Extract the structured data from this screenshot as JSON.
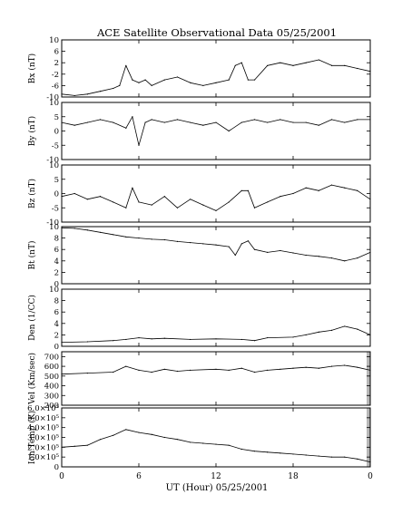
{
  "figure": {
    "title": "ACE Satellite Observational Data   05/25/2001",
    "xlabel": "UT (Hour)   05/25/2001"
  },
  "colors": {
    "trace": "#000000",
    "data_gap": "#b8b8b8",
    "background": "#ffffff"
  },
  "chart_data": [
    {
      "type": "line",
      "ylabel": "Bx (nT)",
      "ylim": [
        -10,
        10
      ],
      "yticks": [
        "10",
        "6",
        "2",
        "-2",
        "-6",
        "-10"
      ],
      "ytick_values": [
        10,
        6,
        2,
        -2,
        -6,
        -10
      ],
      "xlim": [
        0,
        24
      ],
      "xticks": [
        "0",
        "6",
        "12",
        "18",
        "0"
      ],
      "x": [
        0,
        1,
        2,
        3,
        4,
        4.5,
        5,
        5.5,
        6,
        6.5,
        7,
        8,
        9,
        10,
        11,
        12,
        13,
        13.5,
        14,
        14.5,
        15,
        16,
        17,
        18,
        19,
        20,
        21,
        22,
        23,
        24
      ],
      "values": [
        -9,
        -9.5,
        -9,
        -8,
        -7,
        -6,
        1,
        -4,
        -5,
        -4,
        -6,
        -4,
        -3,
        -5,
        -6,
        -5,
        -4,
        1,
        2,
        -4,
        -4,
        1,
        2,
        1,
        2,
        3,
        1,
        1,
        0,
        -1
      ]
    },
    {
      "type": "line",
      "ylabel": "By (nT)",
      "ylim": [
        -10,
        10
      ],
      "yticks": [
        "10",
        "5",
        "0",
        "-5",
        "-10"
      ],
      "ytick_values": [
        10,
        5,
        0,
        -5,
        -10
      ],
      "xlim": [
        0,
        24
      ],
      "x": [
        0,
        1,
        2,
        3,
        4,
        5,
        5.5,
        6,
        6.5,
        7,
        8,
        9,
        10,
        11,
        12,
        13,
        14,
        15,
        16,
        17,
        18,
        19,
        20,
        21,
        22,
        23,
        24
      ],
      "values": [
        3,
        2,
        3,
        4,
        3,
        1,
        5,
        -5,
        3,
        4,
        3,
        4,
        3,
        2,
        3,
        0,
        3,
        4,
        3,
        4,
        3,
        3,
        2,
        4,
        3,
        4,
        4
      ]
    },
    {
      "type": "line",
      "ylabel": "Bz (nT)",
      "ylim": [
        -10,
        10
      ],
      "yticks": [
        "10",
        "5",
        "0",
        "-5",
        "-10"
      ],
      "ytick_values": [
        10,
        5,
        0,
        -5,
        -10
      ],
      "xlim": [
        0,
        24
      ],
      "x": [
        0,
        1,
        2,
        3,
        4,
        5,
        5.5,
        6,
        7,
        8,
        9,
        10,
        11,
        12,
        13,
        14,
        14.5,
        15,
        16,
        17,
        18,
        19,
        20,
        21,
        22,
        23,
        24
      ],
      "values": [
        -1,
        0,
        -2,
        -1,
        -3,
        -5,
        2,
        -3,
        -4,
        -1,
        -5,
        -2,
        -4,
        -6,
        -3,
        1,
        1,
        -5,
        -3,
        -1,
        0,
        2,
        1,
        3,
        2,
        1,
        -2
      ]
    },
    {
      "type": "line",
      "ylabel": "Bt (nT)",
      "ylim": [
        0,
        10
      ],
      "yticks": [
        "10",
        "8",
        "6",
        "4",
        "2",
        "0"
      ],
      "ytick_values": [
        10,
        8,
        6,
        4,
        2,
        0
      ],
      "xlim": [
        0,
        24
      ],
      "x": [
        0,
        1,
        2,
        3,
        4,
        5,
        6,
        7,
        8,
        9,
        10,
        11,
        12,
        13,
        13.5,
        14,
        14.5,
        15,
        16,
        17,
        18,
        19,
        20,
        21,
        22,
        23,
        24
      ],
      "values": [
        9.8,
        9.7,
        9.4,
        9,
        8.6,
        8.2,
        8,
        7.8,
        7.7,
        7.4,
        7.2,
        7,
        6.8,
        6.5,
        5,
        7,
        7.5,
        6,
        5.5,
        5.8,
        5.4,
        5,
        4.8,
        4.5,
        4,
        4.5,
        5.5
      ]
    },
    {
      "type": "line",
      "ylabel": "Den (1/CC)",
      "ylim": [
        0,
        10
      ],
      "yticks": [
        "10",
        "8",
        "6",
        "4",
        "2",
        "0"
      ],
      "ytick_values": [
        10,
        8,
        6,
        4,
        2,
        0
      ],
      "xlim": [
        0,
        24
      ],
      "x": [
        0,
        2,
        4,
        5,
        6,
        7,
        8,
        10,
        12,
        14,
        15,
        16,
        18,
        19,
        20,
        21,
        22,
        23,
        24
      ],
      "values": [
        0.7,
        0.8,
        1,
        1.2,
        1.5,
        1.3,
        1.4,
        1.2,
        1.3,
        1.2,
        1,
        1.5,
        1.6,
        2,
        2.5,
        2.8,
        3.5,
        3,
        2
      ]
    },
    {
      "type": "line",
      "ylabel": "Vel (Km/sec)",
      "ylim": [
        200,
        750
      ],
      "yticks": [
        "700",
        "600",
        "500",
        "400",
        "300",
        "200"
      ],
      "ytick_values": [
        700,
        600,
        500,
        400,
        300,
        200
      ],
      "xlim": [
        0,
        24
      ],
      "x": [
        0,
        2,
        4,
        5,
        6,
        7,
        8,
        9,
        10,
        12,
        13,
        14,
        15,
        16,
        17,
        18,
        19,
        20,
        21,
        22,
        23,
        24
      ],
      "values": [
        520,
        530,
        540,
        600,
        560,
        540,
        570,
        550,
        560,
        570,
        560,
        580,
        540,
        560,
        570,
        580,
        590,
        580,
        600,
        610,
        590,
        560
      ]
    },
    {
      "type": "line",
      "ylabel": "Ion Temp (K)",
      "ylim": [
        0,
        600000
      ],
      "yticks": [
        "6.0×10⁵",
        "5.0×10⁵",
        "4.0×10⁵",
        "3.0×10⁵",
        "2.0×10⁵",
        "1.0×10⁵",
        "0"
      ],
      "ytick_values": [
        600000,
        500000,
        400000,
        300000,
        200000,
        100000,
        0
      ],
      "xlim": [
        0,
        24
      ],
      "x": [
        0,
        1,
        2,
        3,
        4,
        5,
        6,
        7,
        8,
        9,
        10,
        11,
        12,
        13,
        14,
        15,
        16,
        17,
        18,
        19,
        20,
        21,
        22,
        23,
        24
      ],
      "values": [
        200000,
        210000,
        220000,
        280000,
        320000,
        380000,
        350000,
        330000,
        300000,
        280000,
        250000,
        240000,
        230000,
        220000,
        180000,
        160000,
        150000,
        140000,
        130000,
        120000,
        110000,
        100000,
        100000,
        80000,
        50000
      ]
    }
  ]
}
